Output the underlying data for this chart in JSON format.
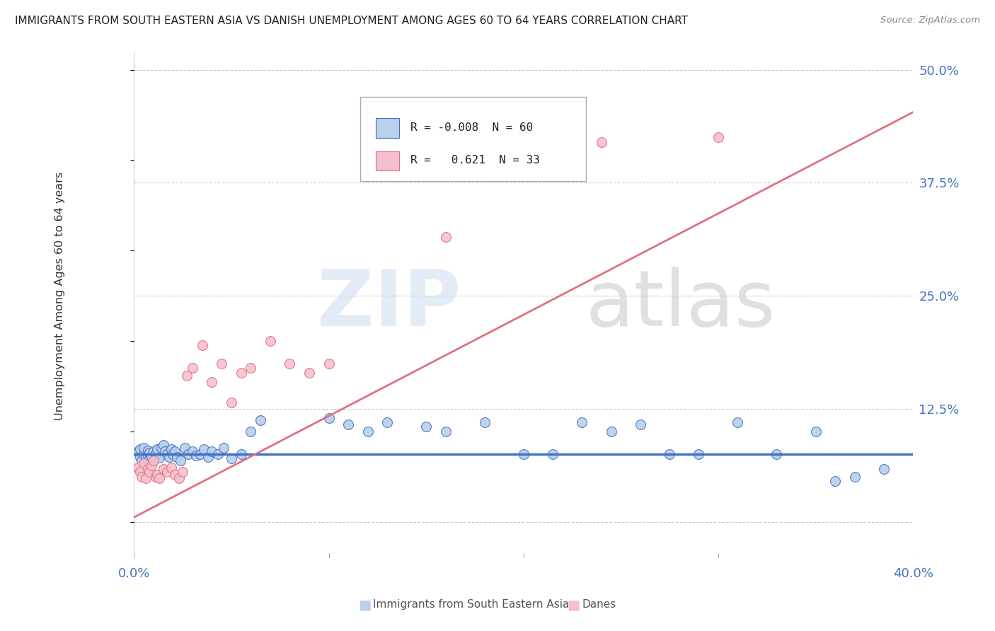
{
  "title": "IMMIGRANTS FROM SOUTH EASTERN ASIA VS DANISH UNEMPLOYMENT AMONG AGES 60 TO 64 YEARS CORRELATION CHART",
  "source": "Source: ZipAtlas.com",
  "xlabel_blue": "Immigrants from South Eastern Asia",
  "xlabel_pink": "Danes",
  "ylabel": "Unemployment Among Ages 60 to 64 years",
  "xlim": [
    0.0,
    0.4
  ],
  "ylim": [
    -0.04,
    0.52
  ],
  "yticks": [
    0.0,
    0.125,
    0.25,
    0.375,
    0.5
  ],
  "ytick_labels": [
    "",
    "12.5%",
    "25.0%",
    "37.5%",
    "50.0%"
  ],
  "blue_R": -0.008,
  "blue_N": 60,
  "pink_R": 0.621,
  "pink_N": 33,
  "blue_color": "#b8d0ea",
  "pink_color": "#f5c0ce",
  "blue_line_color": "#4472c4",
  "pink_line_color": "#e07080",
  "grid_color": "#cccccc",
  "blue_line_y0": 0.075,
  "blue_line_slope": 0.0,
  "pink_line_y0": 0.005,
  "pink_line_slope": 1.12,
  "blue_scatter_x": [
    0.002,
    0.003,
    0.003,
    0.004,
    0.005,
    0.005,
    0.006,
    0.007,
    0.007,
    0.008,
    0.008,
    0.009,
    0.01,
    0.011,
    0.012,
    0.013,
    0.014,
    0.015,
    0.016,
    0.017,
    0.018,
    0.019,
    0.02,
    0.021,
    0.022,
    0.024,
    0.026,
    0.028,
    0.03,
    0.032,
    0.034,
    0.036,
    0.038,
    0.04,
    0.043,
    0.046,
    0.05,
    0.055,
    0.06,
    0.065,
    0.1,
    0.11,
    0.12,
    0.13,
    0.15,
    0.16,
    0.18,
    0.2,
    0.215,
    0.23,
    0.245,
    0.26,
    0.275,
    0.29,
    0.31,
    0.33,
    0.35,
    0.36,
    0.37,
    0.385
  ],
  "blue_scatter_y": [
    0.078,
    0.072,
    0.08,
    0.068,
    0.075,
    0.082,
    0.07,
    0.073,
    0.079,
    0.069,
    0.076,
    0.072,
    0.078,
    0.075,
    0.08,
    0.071,
    0.082,
    0.085,
    0.078,
    0.075,
    0.072,
    0.08,
    0.075,
    0.078,
    0.072,
    0.068,
    0.082,
    0.075,
    0.078,
    0.073,
    0.075,
    0.08,
    0.072,
    0.078,
    0.075,
    0.082,
    0.07,
    0.075,
    0.1,
    0.112,
    0.115,
    0.108,
    0.1,
    0.11,
    0.105,
    0.1,
    0.11,
    0.075,
    0.075,
    0.11,
    0.1,
    0.108,
    0.075,
    0.075,
    0.11,
    0.075,
    0.1,
    0.045,
    0.05,
    0.058
  ],
  "pink_scatter_x": [
    0.002,
    0.003,
    0.004,
    0.005,
    0.006,
    0.007,
    0.008,
    0.009,
    0.01,
    0.011,
    0.012,
    0.013,
    0.015,
    0.017,
    0.019,
    0.021,
    0.023,
    0.025,
    0.027,
    0.03,
    0.035,
    0.04,
    0.045,
    0.05,
    0.055,
    0.06,
    0.07,
    0.08,
    0.09,
    0.1,
    0.16,
    0.24,
    0.3
  ],
  "pink_scatter_y": [
    0.06,
    0.055,
    0.05,
    0.065,
    0.048,
    0.058,
    0.055,
    0.062,
    0.068,
    0.05,
    0.052,
    0.048,
    0.058,
    0.055,
    0.06,
    0.052,
    0.048,
    0.055,
    0.162,
    0.17,
    0.195,
    0.155,
    0.175,
    0.132,
    0.165,
    0.17,
    0.2,
    0.175,
    0.165,
    0.175,
    0.315,
    0.42,
    0.425
  ]
}
